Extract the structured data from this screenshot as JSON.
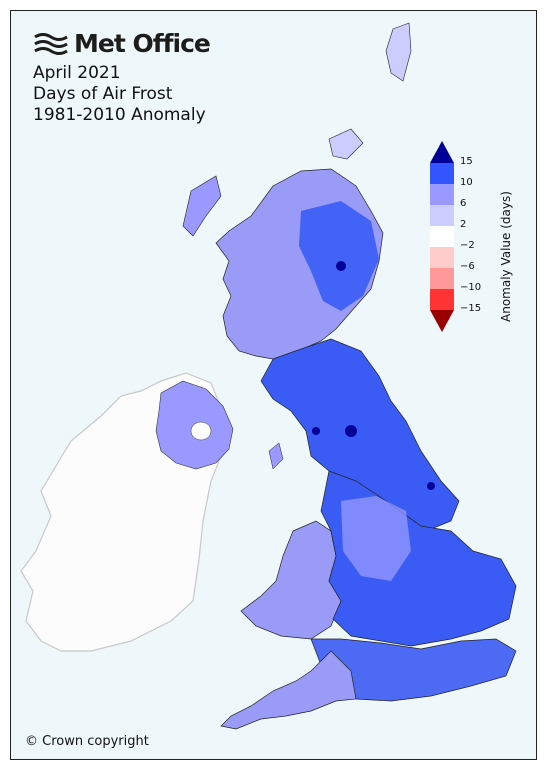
{
  "branding": {
    "logo_text": "Met Office",
    "logo_icon": "met-office-waves-icon"
  },
  "title": {
    "line1": "April 2021",
    "line2": "Days of Air Frost",
    "line3": "1981-2010 Anomaly"
  },
  "copyright": "© Crown copyright",
  "legend": {
    "title": "Anomaly Value (days)",
    "bands": [
      {
        "range": "10 to 15",
        "color": "#3355ff"
      },
      {
        "range": "6 to 10",
        "color": "#9999ff"
      },
      {
        "range": "2 to 6",
        "color": "#ccccff"
      },
      {
        "range": "-2 to 2",
        "color": "#ffffff"
      },
      {
        "range": "-6 to -2",
        "color": "#ffcccc"
      },
      {
        "range": "-10 to -6",
        "color": "#ff9999"
      },
      {
        "range": "-15 to -10",
        "color": "#ff3333"
      }
    ],
    "over_color": "#000099",
    "under_color": "#990000",
    "ticks": [
      "15",
      "10",
      "6",
      "2",
      "−2",
      "−6",
      "−10",
      "−15"
    ]
  },
  "colors": {
    "sea": "#eef7fa",
    "ireland": "#fcfcfc",
    "dominant_land": "#3a5cf5"
  }
}
